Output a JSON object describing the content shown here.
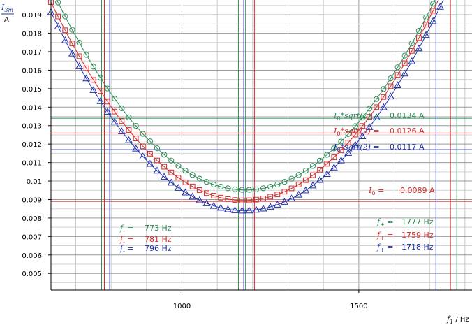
{
  "chart_data": {
    "type": "scatter",
    "x_axis": {
      "label_symbol": "f",
      "label_subscript": "1",
      "label_unit": "/ Hz",
      "range": [
        630,
        1820
      ],
      "tick_labels": [
        "1000",
        "1500"
      ],
      "ticks": [
        1000,
        1500
      ],
      "minor_step": 100
    },
    "y_axis": {
      "label_symbol": "I",
      "label_subscript": "3m",
      "label_unit": "A",
      "range": [
        0.0041,
        0.0198
      ],
      "ticks": [
        0.005,
        0.006,
        0.007,
        0.008,
        0.009,
        0.01,
        0.011,
        0.012,
        0.013,
        0.014,
        0.015,
        0.016,
        0.017,
        0.018,
        0.019
      ],
      "tick_labels": [
        "0.005",
        "0.006",
        "0.007",
        "0.008",
        "0.009",
        "0.01",
        "0.011",
        "0.012",
        "0.013",
        "0.014",
        "0.015",
        "0.016",
        "0.017",
        "0.018",
        "0.019"
      ],
      "minor_step": 0.0005
    },
    "grid": true,
    "colors": {
      "green": "#2e8b57",
      "red": "#d42a2a",
      "blue": "#1f2fa8"
    },
    "series": [
      {
        "color": "green",
        "marker": "circle",
        "f0": 1180,
        "i_min": 0.00952,
        "a": 3.6e-08,
        "b": -2.2e-13,
        "lines": {
          "h": [
            0.0134
          ],
          "v": [
            773,
            1160,
            1180,
            1777
          ]
        }
      },
      {
        "color": "red",
        "marker": "square",
        "f0": 1175,
        "i_min": 0.00895,
        "a": 3.6e-08,
        "b": -2.5e-13,
        "lines": {
          "h": [
            0.0126,
            0.0089
          ],
          "v": [
            781,
            1175,
            1205,
            1759
          ]
        }
      },
      {
        "color": "blue",
        "marker": "triangle",
        "f0": 1175,
        "i_min": 0.0084,
        "a": 3.6e-08,
        "b": -3.1e-13,
        "lines": {
          "h": [
            0.0117
          ],
          "v": [
            796,
            1175,
            1718
          ]
        }
      }
    ],
    "x_samples": {
      "start": 630,
      "end": 1820,
      "step": 20
    },
    "annotations": [
      {
        "color": "green",
        "lhs": "I",
        "sub": "0",
        "rest": "*sqrt(2)",
        "eq": "=",
        "value": "0.0134 A"
      },
      {
        "color": "red",
        "lhs": "I",
        "sub": "0",
        "rest": "*sqrt(2)",
        "eq": "=",
        "value": "0.0126 A"
      },
      {
        "color": "blue",
        "lhs": "I",
        "sub": "0",
        "rest": "*sqrt(2)",
        "eq": "=",
        "value": "0.0117 A"
      },
      {
        "color": "red",
        "lhs": "I",
        "sub": "0",
        "rest": "",
        "eq": "=",
        "value": "0.0089 A"
      },
      {
        "color": "green",
        "lhs": "f",
        "sub": "-",
        "rest": "",
        "eq": "=",
        "value": "773 Hz"
      },
      {
        "color": "red",
        "lhs": "f",
        "sub": "-",
        "rest": "",
        "eq": "=",
        "value": "781 Hz"
      },
      {
        "color": "blue",
        "lhs": "f",
        "sub": "-",
        "rest": "",
        "eq": "=",
        "value": "796 Hz"
      },
      {
        "color": "green",
        "lhs": "f",
        "sub": "+",
        "rest": "",
        "eq": "=",
        "value": "1777 Hz"
      },
      {
        "color": "red",
        "lhs": "f",
        "sub": "+",
        "rest": "",
        "eq": "=",
        "value": "1759 Hz"
      },
      {
        "color": "blue",
        "lhs": "f",
        "sub": "+",
        "rest": "",
        "eq": "=",
        "value": "1718 Hz"
      }
    ]
  }
}
